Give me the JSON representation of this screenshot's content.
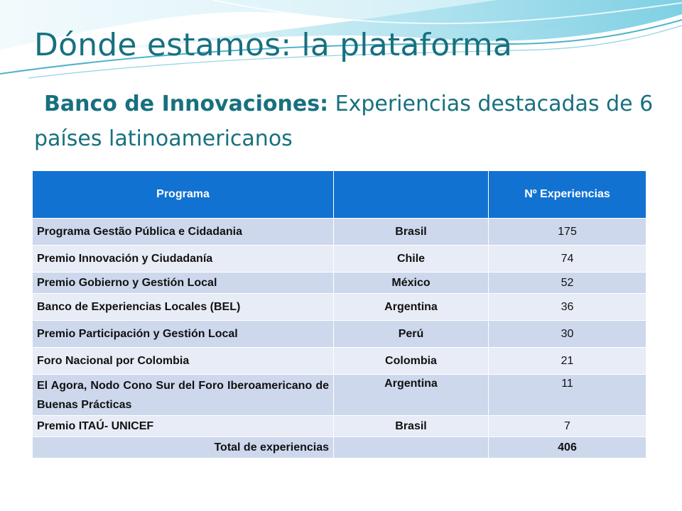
{
  "slide": {
    "title": "Dónde estamos: la plataforma",
    "subtitle_bold": "Banco de Innovaciones:",
    "subtitle_rest": " Experiencias destacadas de 6 países latinoamericanos"
  },
  "table": {
    "headers": [
      "Programa",
      "",
      "Nº Experiencias"
    ],
    "rows": [
      {
        "program": "Programa Gestão Pública e Cidadania",
        "country": "Brasil",
        "count": "175"
      },
      {
        "program": "Premio Innovación y Ciudadanía",
        "country": "Chile",
        "count": "74"
      },
      {
        "program": "Premio Gobierno y Gestión Local",
        "country": "México",
        "count": "52"
      },
      {
        "program": "Banco de Experiencias Locales (BEL)",
        "country": "Argentina",
        "count": "36"
      },
      {
        "program": "Premio Participación y Gestión Local",
        "country": "Perú",
        "count": "30"
      },
      {
        "program": "Foro Nacional por Colombia",
        "country": "Colombia",
        "count": "21"
      },
      {
        "program": "El Agora, Nodo Cono Sur del Foro Iberoamericano de Buenas Prácticas",
        "country": "Argentina",
        "count": "11"
      },
      {
        "program": "Premio ITAÚ- UNICEF",
        "country": "Brasil",
        "count": "7"
      }
    ],
    "total": {
      "label": "Total de experiencias",
      "country": "",
      "count": "406"
    }
  },
  "colors": {
    "title": "#17707f",
    "header_fill": "#1272d2",
    "row_dark": "#cdd8ec",
    "row_light": "#e8ecf6",
    "wave": "#5bbfd6"
  }
}
